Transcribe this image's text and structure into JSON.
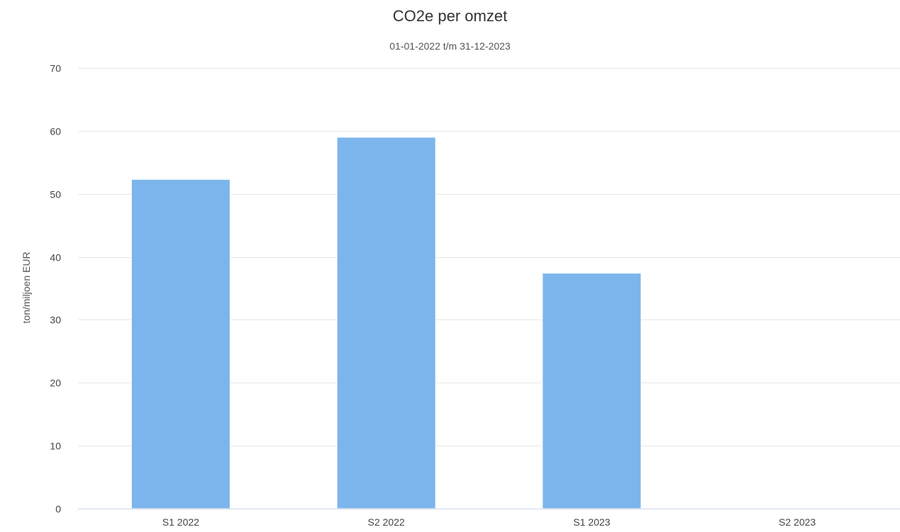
{
  "chart_data": {
    "type": "bar",
    "title": "CO2e per omzet",
    "subtitle": "01-01-2022 t/m 31-12-2023",
    "xlabel": "",
    "ylabel": "ton/miljoen EUR",
    "categories": [
      "S1 2022",
      "S2 2022",
      "S1 2023",
      "S2 2023"
    ],
    "series": [
      {
        "values": [
          52.3,
          59.0,
          37.4,
          0
        ],
        "color": "#7cb5ec"
      }
    ],
    "ylim": [
      0,
      70
    ],
    "yticks": [
      0,
      10,
      20,
      30,
      40,
      50,
      60,
      70
    ],
    "grid": true,
    "legend": "none"
  },
  "colors": {
    "bar": "#7cb5ec",
    "grid": "#e6e6e6",
    "axis": "#ccd6eb"
  }
}
